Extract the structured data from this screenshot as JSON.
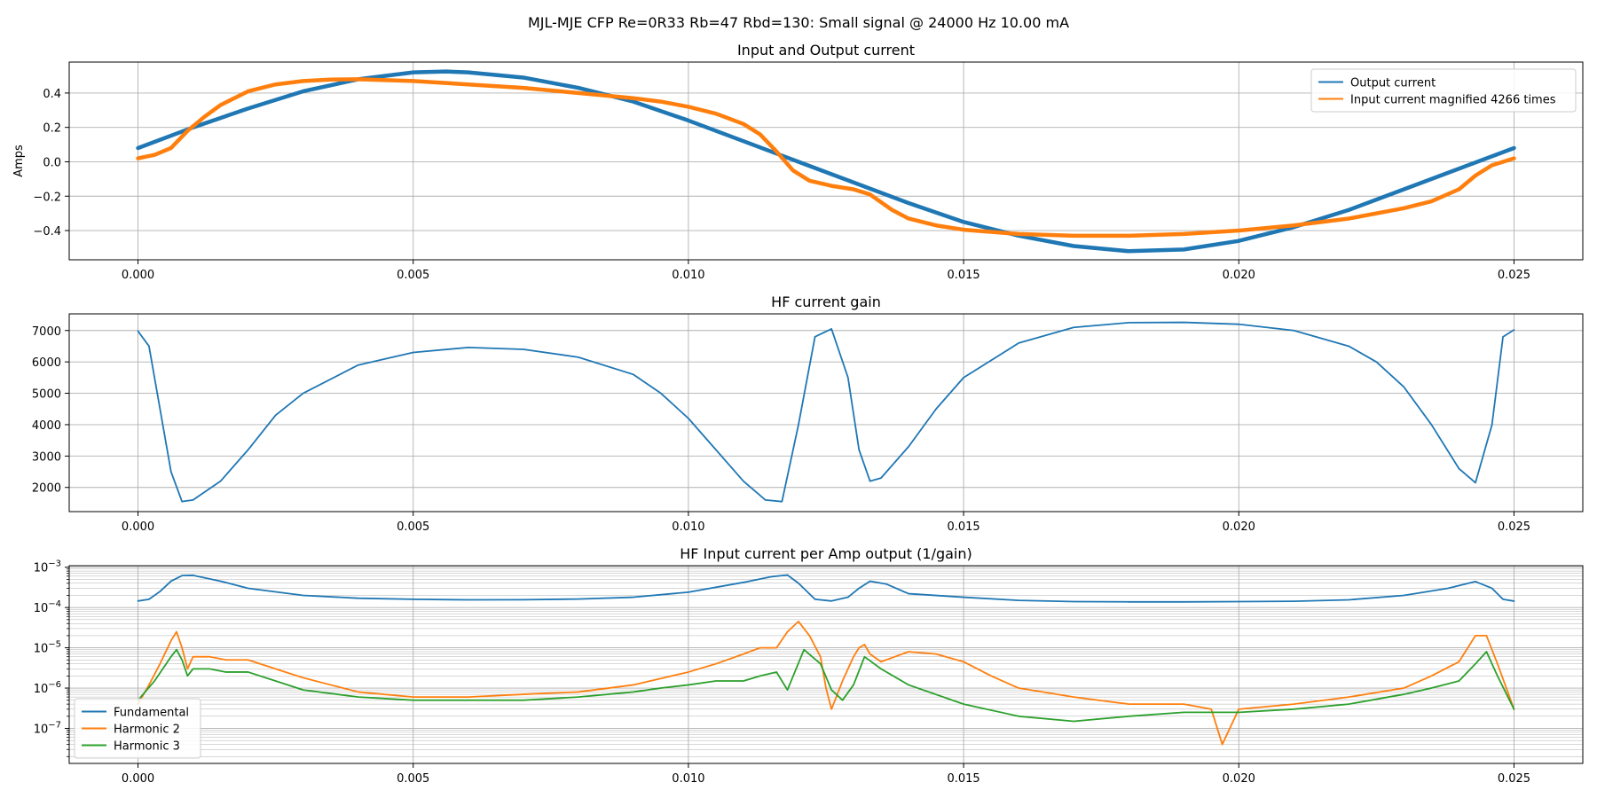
{
  "suptitle": "MJL-MJE CFP Re=0R33 Rb=47 Rbd=130: Small signal @ 24000 Hz 10.00 mA",
  "colors": {
    "blue": "#1f77b4",
    "orange": "#ff7f0e",
    "green": "#2ca02c",
    "grid": "#b0b0b0"
  },
  "chart_data": [
    {
      "type": "line",
      "title": "Input and Output current",
      "xlabel": "",
      "ylabel": "Amps",
      "xlim": [
        -0.00125,
        0.02625
      ],
      "ylim": [
        -0.57,
        0.58
      ],
      "xticks": [
        0,
        0.005,
        0.01,
        0.015,
        0.02,
        0.025
      ],
      "xtick_labels": [
        "0.000",
        "0.005",
        "0.010",
        "0.015",
        "0.020",
        "0.025"
      ],
      "yticks": [
        -0.4,
        -0.2,
        0.0,
        0.2,
        0.4
      ],
      "ytick_labels": [
        "−0.4",
        "−0.2",
        "0.0",
        "0.2",
        "0.4"
      ],
      "grid": true,
      "legend": "upper right",
      "series": [
        {
          "name": "Output current",
          "color": "#1f77b4",
          "thick": true,
          "x": [
            0,
            0.001,
            0.002,
            0.003,
            0.004,
            0.005,
            0.0056,
            0.006,
            0.007,
            0.008,
            0.009,
            0.01,
            0.011,
            0.012,
            0.013,
            0.014,
            0.015,
            0.016,
            0.017,
            0.018,
            0.019,
            0.02,
            0.021,
            0.022,
            0.023,
            0.024,
            0.025
          ],
          "y": [
            0.08,
            0.2,
            0.31,
            0.41,
            0.48,
            0.52,
            0.525,
            0.52,
            0.49,
            0.43,
            0.35,
            0.24,
            0.12,
            0.0,
            -0.12,
            -0.24,
            -0.35,
            -0.43,
            -0.49,
            -0.52,
            -0.51,
            -0.46,
            -0.38,
            -0.28,
            -0.16,
            -0.04,
            0.08
          ]
        },
        {
          "name": "Input current magnified 4266 times",
          "color": "#ff7f0e",
          "thick": true,
          "x": [
            0,
            0.0003,
            0.0006,
            0.0009,
            0.0012,
            0.0015,
            0.002,
            0.0025,
            0.003,
            0.0035,
            0.004,
            0.005,
            0.006,
            0.007,
            0.008,
            0.009,
            0.0095,
            0.01,
            0.0105,
            0.011,
            0.0113,
            0.0116,
            0.0119,
            0.0122,
            0.0126,
            0.013,
            0.0133,
            0.0137,
            0.014,
            0.0145,
            0.015,
            0.016,
            0.017,
            0.018,
            0.019,
            0.02,
            0.021,
            0.022,
            0.023,
            0.0235,
            0.024,
            0.0243,
            0.0246,
            0.025
          ],
          "y": [
            0.02,
            0.04,
            0.08,
            0.18,
            0.26,
            0.33,
            0.41,
            0.45,
            0.47,
            0.478,
            0.48,
            0.47,
            0.45,
            0.43,
            0.4,
            0.37,
            0.35,
            0.32,
            0.28,
            0.22,
            0.16,
            0.06,
            -0.05,
            -0.11,
            -0.14,
            -0.16,
            -0.19,
            -0.28,
            -0.33,
            -0.37,
            -0.395,
            -0.42,
            -0.43,
            -0.43,
            -0.42,
            -0.4,
            -0.37,
            -0.33,
            -0.27,
            -0.23,
            -0.16,
            -0.08,
            -0.02,
            0.02
          ]
        }
      ]
    },
    {
      "type": "line",
      "title": "HF current gain",
      "xlabel": "",
      "ylabel": "",
      "xlim": [
        -0.00125,
        0.02625
      ],
      "ylim": [
        1230,
        7530
      ],
      "xticks": [
        0,
        0.005,
        0.01,
        0.015,
        0.02,
        0.025
      ],
      "xtick_labels": [
        "0.000",
        "0.005",
        "0.010",
        "0.015",
        "0.020",
        "0.025"
      ],
      "yticks": [
        2000,
        3000,
        4000,
        5000,
        6000,
        7000
      ],
      "ytick_labels": [
        "2000",
        "3000",
        "4000",
        "5000",
        "6000",
        "7000"
      ],
      "grid": true,
      "series": [
        {
          "color": "#1f77b4",
          "x": [
            0,
            0.0002,
            0.0004,
            0.0006,
            0.0008,
            0.001,
            0.0015,
            0.002,
            0.0025,
            0.003,
            0.004,
            0.005,
            0.006,
            0.007,
            0.008,
            0.009,
            0.0095,
            0.01,
            0.0105,
            0.011,
            0.0114,
            0.0117,
            0.012,
            0.0123,
            0.0126,
            0.0129,
            0.0131,
            0.0133,
            0.0135,
            0.014,
            0.0145,
            0.015,
            0.016,
            0.017,
            0.018,
            0.019,
            0.02,
            0.021,
            0.022,
            0.0225,
            0.023,
            0.0235,
            0.024,
            0.0243,
            0.0246,
            0.0248,
            0.025
          ],
          "y": [
            6980,
            6500,
            4500,
            2500,
            1550,
            1600,
            2200,
            3200,
            4300,
            5000,
            5900,
            6300,
            6460,
            6400,
            6150,
            5600,
            5000,
            4200,
            3200,
            2200,
            1600,
            1550,
            4000,
            6800,
            7050,
            5500,
            3200,
            2200,
            2300,
            3300,
            4500,
            5500,
            6600,
            7100,
            7250,
            7260,
            7200,
            7000,
            6500,
            6000,
            5200,
            4000,
            2600,
            2150,
            4000,
            6800,
            7020
          ]
        }
      ]
    },
    {
      "type": "line",
      "title": "HF Input current per Amp output (1/gain)",
      "xlabel": "",
      "ylabel": "",
      "yscale": "log",
      "xlim": [
        -0.00125,
        0.02625
      ],
      "ylim": [
        1.35e-08,
        0.00109
      ],
      "xticks": [
        0,
        0.005,
        0.01,
        0.015,
        0.02,
        0.025
      ],
      "xtick_labels": [
        "0.000",
        "0.005",
        "0.010",
        "0.015",
        "0.020",
        "0.025"
      ],
      "ytick_exponents": [
        -7,
        -6,
        -5,
        -4,
        -3
      ],
      "grid": true,
      "legend": "lower left",
      "series": [
        {
          "name": "Fundamental",
          "color": "#1f77b4",
          "x": [
            0,
            0.0002,
            0.0004,
            0.0006,
            0.0008,
            0.001,
            0.0015,
            0.002,
            0.003,
            0.004,
            0.005,
            0.006,
            0.007,
            0.008,
            0.009,
            0.01,
            0.011,
            0.0115,
            0.0118,
            0.012,
            0.0123,
            0.0126,
            0.0129,
            0.0131,
            0.0133,
            0.0136,
            0.014,
            0.015,
            0.016,
            0.017,
            0.018,
            0.019,
            0.02,
            0.021,
            0.022,
            0.023,
            0.0238,
            0.0243,
            0.0246,
            0.0248,
            0.025
          ],
          "y": [
            0.000145,
            0.00016,
            0.00025,
            0.00045,
            0.00062,
            0.00063,
            0.00045,
            0.0003,
            0.0002,
            0.00017,
            0.00016,
            0.000155,
            0.000156,
            0.000162,
            0.00018,
            0.00024,
            0.00042,
            0.00058,
            0.00064,
            0.0004,
            0.00016,
            0.000145,
            0.00018,
            0.0003,
            0.00045,
            0.00038,
            0.00022,
            0.00018,
            0.00015,
            0.00014,
            0.000138,
            0.000138,
            0.00014,
            0.000143,
            0.000155,
            0.0002,
            0.0003,
            0.00044,
            0.0003,
            0.00016,
            0.000144
          ]
        },
        {
          "name": "Harmonic 2",
          "color": "#ff7f0e",
          "x": [
            0,
            0.0002,
            0.0004,
            0.0006,
            0.0007,
            0.0008,
            0.0009,
            0.001,
            0.0013,
            0.0016,
            0.002,
            0.0025,
            0.003,
            0.0035,
            0.004,
            0.005,
            0.006,
            0.007,
            0.008,
            0.009,
            0.01,
            0.0105,
            0.011,
            0.0113,
            0.0116,
            0.0118,
            0.012,
            0.0122,
            0.0124,
            0.0125,
            0.0126,
            0.0128,
            0.013,
            0.0131,
            0.0132,
            0.0133,
            0.0135,
            0.014,
            0.0145,
            0.015,
            0.0155,
            0.016,
            0.017,
            0.018,
            0.019,
            0.0195,
            0.0197,
            0.02,
            0.021,
            0.022,
            0.023,
            0.0235,
            0.024,
            0.0243,
            0.0245,
            0.0247,
            0.025
          ],
          "y": [
            4e-07,
            1.2e-06,
            4e-06,
            1.5e-05,
            2.5e-05,
            1e-05,
            3e-06,
            6e-06,
            6e-06,
            5e-06,
            5e-06,
            3e-06,
            1.8e-06,
            1.2e-06,
            8e-07,
            6e-07,
            6e-07,
            7e-07,
            8e-07,
            1.2e-06,
            2.5e-06,
            4e-06,
            7e-06,
            1e-05,
            1e-05,
            2.5e-05,
            4.5e-05,
            2e-05,
            6e-06,
            1e-06,
            3e-07,
            1.5e-06,
            6e-06,
            1e-05,
            1.2e-05,
            7e-06,
            4.5e-06,
            8e-06,
            7e-06,
            4.5e-06,
            2e-06,
            1e-06,
            6e-07,
            4e-07,
            4e-07,
            3e-07,
            4e-08,
            3e-07,
            4e-07,
            6e-07,
            1e-06,
            2e-06,
            4.5e-06,
            2e-05,
            2e-05,
            4e-06,
            3e-07
          ]
        },
        {
          "name": "Harmonic 3",
          "color": "#2ca02c",
          "x": [
            0,
            0.0003,
            0.0006,
            0.0007,
            0.0008,
            0.0009,
            0.001,
            0.0013,
            0.0016,
            0.002,
            0.0025,
            0.003,
            0.004,
            0.005,
            0.006,
            0.007,
            0.008,
            0.009,
            0.0095,
            0.01,
            0.0105,
            0.011,
            0.0113,
            0.0116,
            0.0118,
            0.0121,
            0.0124,
            0.0126,
            0.0128,
            0.013,
            0.0132,
            0.0135,
            0.014,
            0.015,
            0.016,
            0.017,
            0.018,
            0.019,
            0.02,
            0.021,
            0.022,
            0.023,
            0.0235,
            0.024,
            0.0243,
            0.0245,
            0.0247,
            0.025
          ],
          "y": [
            5e-07,
            1.5e-06,
            6e-06,
            9e-06,
            5e-06,
            2e-06,
            3e-06,
            3e-06,
            2.5e-06,
            2.5e-06,
            1.5e-06,
            9e-07,
            6e-07,
            5e-07,
            5e-07,
            5e-07,
            6e-07,
            8e-07,
            1e-06,
            1.2e-06,
            1.5e-06,
            1.5e-06,
            2e-06,
            2.5e-06,
            9e-07,
            9e-06,
            4e-06,
            9e-07,
            5e-07,
            1.2e-06,
            6e-06,
            3e-06,
            1.2e-06,
            4e-07,
            2e-07,
            1.5e-07,
            2e-07,
            2.5e-07,
            2.5e-07,
            3e-07,
            4e-07,
            7e-07,
            1e-06,
            1.5e-06,
            4e-06,
            8e-06,
            2e-06,
            3e-07
          ]
        }
      ]
    }
  ]
}
